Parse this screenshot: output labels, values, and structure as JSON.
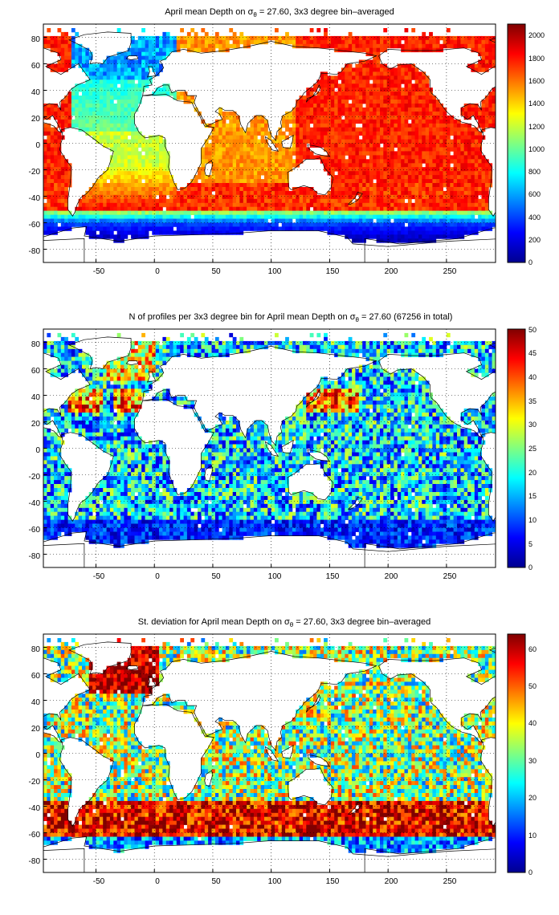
{
  "chart_data": [
    {
      "type": "heatmap",
      "title_main": "April mean Depth on ",
      "title_sym": "σ",
      "title_sub": "θ",
      "title_tail": " = 27.60, 3x3 degree bin–averaged",
      "xlim": [
        -95,
        292
      ],
      "ylim": [
        -90,
        90
      ],
      "xticks": [
        -50,
        0,
        50,
        100,
        150,
        200,
        250
      ],
      "yticks": [
        -80,
        -60,
        -40,
        -20,
        0,
        20,
        40,
        60,
        80
      ],
      "colorbar": {
        "min": 0,
        "max": 2100,
        "ticks": [
          0,
          200,
          400,
          600,
          800,
          1000,
          1200,
          1400,
          1600,
          1800,
          2000
        ]
      },
      "colormap": "jet",
      "grid": true
    },
    {
      "type": "heatmap",
      "title_main": "N of profiles per 3x3 degree bin for April mean Depth on ",
      "title_sym": "σ",
      "title_sub": "θ",
      "title_tail": " = 27.60 (67256 in total)",
      "xlim": [
        -95,
        292
      ],
      "ylim": [
        -90,
        90
      ],
      "xticks": [
        -50,
        0,
        50,
        100,
        150,
        200,
        250
      ],
      "yticks": [
        -80,
        -60,
        -40,
        -20,
        0,
        20,
        40,
        60,
        80
      ],
      "colorbar": {
        "min": 0,
        "max": 50,
        "ticks": [
          0,
          5,
          10,
          15,
          20,
          25,
          30,
          35,
          40,
          45,
          50
        ]
      },
      "colormap": "jet",
      "grid": true
    },
    {
      "type": "heatmap",
      "title_main": "St. deviation for April mean Depth on ",
      "title_sym": "σ",
      "title_sub": "θ",
      "title_tail": " = 27.60, 3x3 degree bin–averaged",
      "xlim": [
        -95,
        292
      ],
      "ylim": [
        -90,
        90
      ],
      "xticks": [
        -50,
        0,
        50,
        100,
        150,
        200,
        250
      ],
      "yticks": [
        -80,
        -60,
        -40,
        -20,
        0,
        20,
        40,
        60,
        80
      ],
      "colorbar": {
        "min": 0,
        "max": 64,
        "ticks": [
          0,
          10,
          20,
          30,
          40,
          50,
          60
        ]
      },
      "colormap": "jet",
      "grid": true
    }
  ]
}
